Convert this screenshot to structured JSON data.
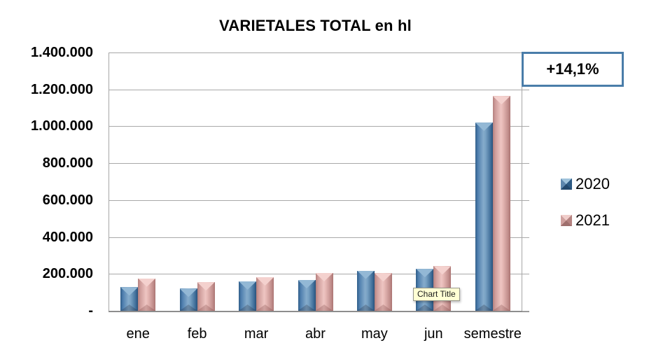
{
  "title": "VARIETALES TOTAL en hl",
  "annotation": {
    "delta_label": "+14,1%",
    "border_color": "#4a7da9"
  },
  "tooltip": {
    "text": "Chart Title"
  },
  "colors": {
    "series_2020": "#4f7fae",
    "series_2021": "#dca7a4",
    "gridline": "#a9a9a9"
  },
  "chart_data": {
    "type": "bar",
    "title": "VARIETALES TOTAL en hl",
    "categories": [
      "ene",
      "feb",
      "mar",
      "abr",
      "may",
      "jun",
      "semestre"
    ],
    "series": [
      {
        "name": "2020",
        "color": "#4f7fae",
        "values": [
          128000,
          120000,
          160000,
          167000,
          218000,
          227000,
          1020000
        ]
      },
      {
        "name": "2021",
        "color": "#dca7a4",
        "values": [
          176000,
          155000,
          182000,
          205000,
          204000,
          242000,
          1164000
        ]
      }
    ],
    "xlabel": "",
    "ylabel": "",
    "ylim": [
      0,
      1400000
    ],
    "y_tick_step": 200000,
    "y_ticks": [
      {
        "value": 1400000,
        "label": "1.400.000"
      },
      {
        "value": 1200000,
        "label": "1.200.000"
      },
      {
        "value": 1000000,
        "label": "1.000.000"
      },
      {
        "value": 800000,
        "label": "800.000"
      },
      {
        "value": 600000,
        "label": "600.000"
      },
      {
        "value": 400000,
        "label": "400.000"
      },
      {
        "value": 200000,
        "label": "200.000"
      },
      {
        "value": 0,
        "label": "-"
      }
    ],
    "grid": true,
    "legend_position": "right",
    "annotation": "+14,1%"
  }
}
